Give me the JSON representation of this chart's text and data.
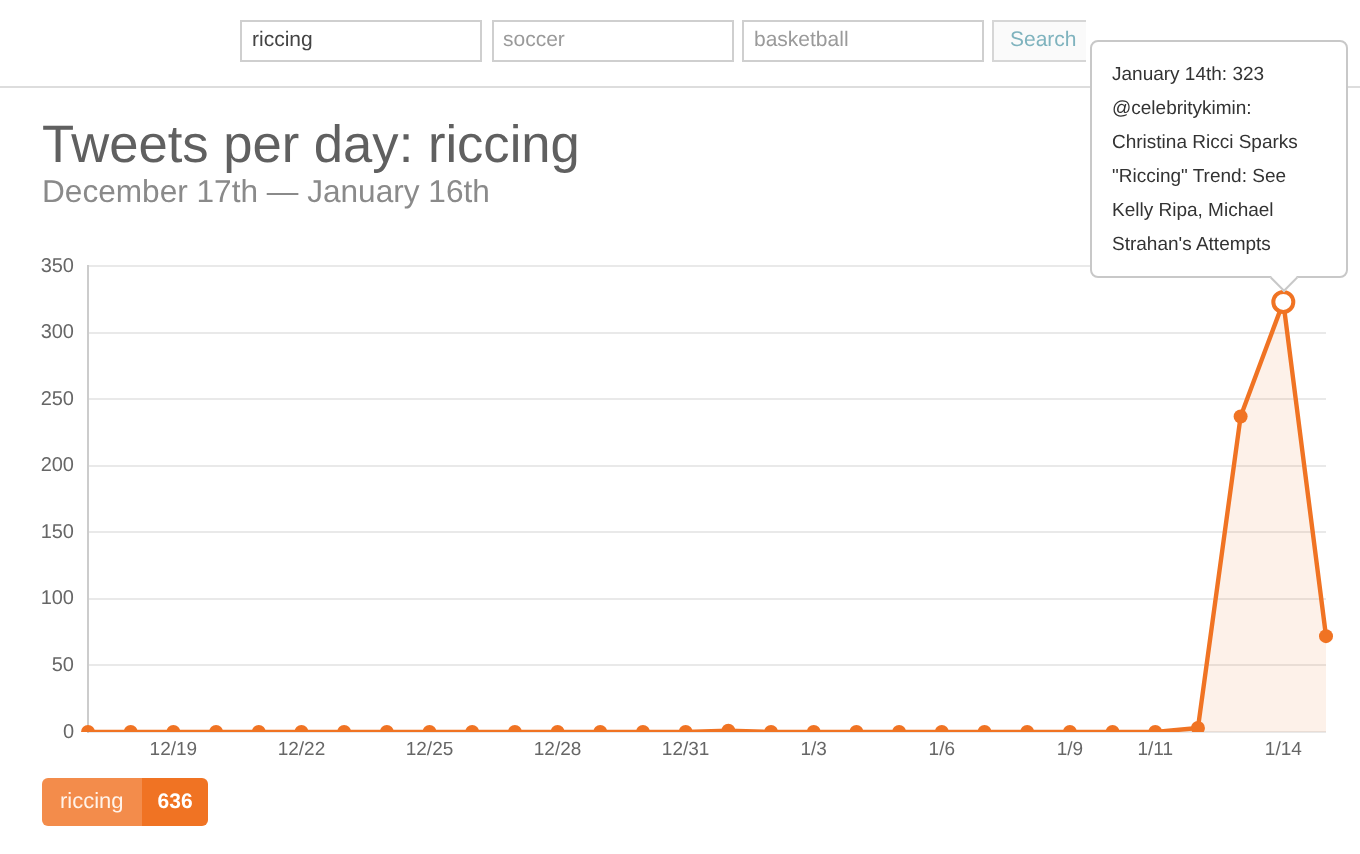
{
  "chart_data": {
    "type": "area",
    "title": "Tweets per day: riccing",
    "subtitle": "December 17th — January 16th",
    "categories": [
      null,
      null,
      "12/19",
      null,
      null,
      "12/22",
      null,
      null,
      "12/25",
      null,
      null,
      "12/28",
      null,
      null,
      "12/31",
      null,
      null,
      "1/3",
      null,
      null,
      "1/6",
      null,
      null,
      "1/9",
      null,
      "1/11",
      null,
      null,
      "1/14",
      null
    ],
    "series": [
      {
        "name": "riccing",
        "color": "#f07323",
        "values": [
          0,
          0,
          0,
          0,
          0,
          0,
          0,
          0,
          0,
          0,
          0,
          0,
          0,
          0,
          0,
          1,
          0,
          0,
          0,
          0,
          0,
          0,
          0,
          0,
          0,
          0,
          3,
          237,
          323,
          72
        ]
      }
    ],
    "ylim": [
      0,
      350
    ],
    "yticks": [
      0,
      50,
      100,
      150,
      200,
      250,
      300,
      350
    ],
    "grid": "y",
    "legend": "bottom left",
    "marker": "circle",
    "line_style": "solid",
    "annotations": [
      "riccing",
      "soccer",
      "basketball",
      "Search",
      {
        "text": "January 14th: 323\n@celebritykimin: Christina Ricci Sparks \"Riccing\" Trend: See Kelly Ripa, Michael Strahan's Attempts",
        "x": "1/14",
        "y": 323
      },
      "636"
    ]
  }
}
